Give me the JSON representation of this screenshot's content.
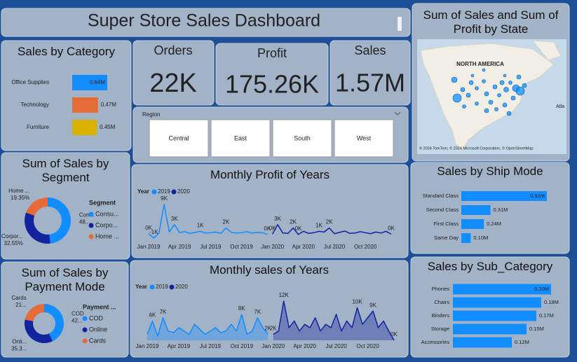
{
  "header": {
    "title": "Super Store Sales Dashboard"
  },
  "kpis": [
    {
      "label": "Orders",
      "value": "22K"
    },
    {
      "label": "Profit",
      "value": "175.26K"
    },
    {
      "label": "Sales",
      "value": "1.57M"
    }
  ],
  "slicer": {
    "title": "Region",
    "options": [
      "Central",
      "East",
      "South",
      "West"
    ]
  },
  "map": {
    "title": "Sum of Sales and Sum of Profit by State",
    "region_label": "NORTH AMERICA",
    "ocean_label": "Atla",
    "attribution": "© 2024 TomTom, © 2024 Microsoft Corporation, © OpenStreetMap"
  },
  "chart_data": [
    {
      "type": "hbar",
      "title": "Sales by Category",
      "categories": [
        "Office Supplies",
        "Technology",
        "Furniture"
      ],
      "values": [
        0.64,
        0.47,
        0.45
      ],
      "value_labels": [
        "0.64M",
        "0.47M",
        "0.45M"
      ],
      "colors": [
        "#118dff",
        "#e66c37",
        "#d9b300"
      ]
    },
    {
      "type": "donut",
      "title": "Sum of Sales by Segment",
      "legend_title": "Segment",
      "categories": [
        "Consu...",
        "Corpo...",
        "Home ..."
      ],
      "slice_labels": [
        "Con...",
        "Corpor...",
        "Home ..."
      ],
      "values": [
        48.1,
        32.55,
        19.35
      ],
      "value_labels": [
        "48...",
        "32.55%",
        "19.35%"
      ],
      "colors": [
        "#118dff",
        "#12239e",
        "#e66c37"
      ]
    },
    {
      "type": "donut",
      "title": "Sum of Sales by Payment Mode",
      "legend_title": "Payment ...",
      "categories": [
        "COD",
        "Online",
        "Cards"
      ],
      "slice_labels": [
        "COD",
        "Onli...",
        "Cards"
      ],
      "values": [
        42.9,
        35.35,
        21.75
      ],
      "value_labels": [
        "42...",
        "35.3...",
        "21..."
      ],
      "colors": [
        "#118dff",
        "#12239e",
        "#e66c37"
      ]
    },
    {
      "type": "line",
      "title": "Monthly Profit of Years",
      "legend_title": "Year",
      "categories": [
        "Jan 2019",
        null,
        null,
        null,
        null,
        null,
        "Apr 2019",
        null,
        null,
        null,
        null,
        null,
        "Jul 2019",
        null,
        null,
        null,
        null,
        null,
        "Oct 2019",
        null,
        null,
        null,
        null,
        null,
        "Jan 2020",
        null,
        null,
        null,
        null,
        null,
        "Apr 2020",
        null,
        null,
        null,
        null,
        null,
        "Jul 2020",
        null,
        null,
        null,
        null,
        null,
        "Oct 2020",
        null,
        null,
        null,
        null,
        null
      ],
      "series": [
        {
          "name": "2019",
          "color": "#118dff",
          "values": [
            0.3,
            -1.0,
            0.5,
            9,
            0.8,
            3,
            0.6,
            0.9,
            0.4,
            0.7,
            1,
            0.5,
            0.6,
            0.8,
            0.4,
            2,
            0.7,
            0.5,
            0.6,
            0.9,
            0.5,
            0.7,
            0.6,
            0.1,
            null,
            null,
            null,
            null,
            null,
            null,
            null,
            null,
            null,
            null,
            null,
            null,
            null,
            null,
            null,
            null,
            null,
            null,
            null,
            null,
            null,
            null,
            null,
            null
          ],
          "value_labels": [
            "0K",
            "-1K",
            null,
            "9K",
            null,
            "3K",
            null,
            null,
            null,
            null,
            "1K",
            null,
            null,
            null,
            null,
            "2K",
            null,
            null,
            null,
            null,
            null,
            null,
            null,
            "0K",
            null,
            null,
            null,
            null,
            null,
            null,
            null,
            null,
            null,
            null,
            null,
            null,
            null,
            null,
            null,
            null,
            null,
            null,
            null,
            null,
            null,
            null,
            null,
            null
          ]
        },
        {
          "name": "2020",
          "color": "#12239e",
          "values": [
            null,
            null,
            null,
            null,
            null,
            null,
            null,
            null,
            null,
            null,
            null,
            null,
            null,
            null,
            null,
            null,
            null,
            null,
            null,
            null,
            null,
            null,
            null,
            null,
            0.2,
            3,
            0.5,
            0.4,
            2,
            0.1,
            1,
            0.4,
            0.6,
            1,
            0.8,
            2,
            0.3,
            0.7,
            1.1,
            0.4,
            0.5,
            0.9,
            0.6,
            0.3,
            0.8,
            0.5,
            1,
            0.2
          ],
          "value_labels": [
            null,
            null,
            null,
            null,
            null,
            null,
            null,
            null,
            null,
            null,
            null,
            null,
            null,
            null,
            null,
            null,
            null,
            null,
            null,
            null,
            null,
            null,
            null,
            null,
            "0K",
            "3K",
            null,
            null,
            "2K",
            "0K",
            null,
            null,
            null,
            "1K",
            null,
            "2K",
            null,
            null,
            null,
            null,
            null,
            null,
            null,
            null,
            null,
            null,
            null,
            "0K"
          ]
        }
      ]
    },
    {
      "type": "area",
      "title": "Monthly sales of Years",
      "legend_title": "Year",
      "categories": [
        "Jan 2019",
        null,
        null,
        null,
        null,
        null,
        "Apr 2019",
        null,
        null,
        null,
        null,
        null,
        "Jul 2019",
        null,
        null,
        null,
        null,
        null,
        "Oct 2019",
        null,
        null,
        null,
        null,
        null,
        "Jan 2020",
        null,
        null,
        null,
        null,
        null,
        "Apr 2020",
        null,
        null,
        null,
        null,
        null,
        "Jul 2020",
        null,
        null,
        null,
        null,
        null,
        "Oct 2020",
        null,
        null,
        null,
        null,
        null
      ],
      "series": [
        {
          "name": "2019",
          "color": "#118dff",
          "values": [
            2,
            6,
            1.5,
            7,
            3,
            2.5,
            4,
            3,
            2,
            5,
            3.5,
            2,
            3,
            4,
            2.5,
            3,
            5,
            3,
            8,
            2,
            3,
            7,
            4,
            2,
            null,
            null,
            null,
            null,
            null,
            null,
            null,
            null,
            null,
            null,
            null,
            null,
            null,
            null,
            null,
            null,
            null,
            null,
            null,
            null,
            null,
            null,
            null,
            null
          ],
          "value_labels": [
            null,
            "6K",
            null,
            "7K",
            null,
            null,
            null,
            null,
            null,
            null,
            null,
            null,
            null,
            null,
            null,
            null,
            null,
            null,
            "8K",
            null,
            null,
            "7K",
            null,
            "2K",
            null,
            null,
            null,
            null,
            null,
            null,
            null,
            null,
            null,
            null,
            null,
            null,
            null,
            null,
            null,
            null,
            null,
            null,
            null,
            null,
            null,
            null,
            null,
            null
          ]
        },
        {
          "name": "2020",
          "color": "#12239e",
          "values": [
            null,
            null,
            null,
            null,
            null,
            null,
            null,
            null,
            null,
            null,
            null,
            null,
            null,
            null,
            null,
            null,
            null,
            null,
            null,
            null,
            null,
            null,
            null,
            null,
            2,
            3,
            12,
            4,
            6,
            3,
            5,
            4,
            7,
            3,
            5,
            4,
            8,
            3,
            6,
            4,
            10,
            5,
            7,
            9,
            4,
            6,
            3,
            0.2
          ],
          "value_labels": [
            null,
            null,
            null,
            null,
            null,
            null,
            null,
            null,
            null,
            null,
            null,
            null,
            null,
            null,
            null,
            null,
            null,
            null,
            null,
            null,
            null,
            null,
            null,
            null,
            "2K",
            null,
            "12K",
            null,
            null,
            null,
            null,
            null,
            null,
            null,
            null,
            null,
            null,
            null,
            null,
            null,
            "10K",
            null,
            null,
            "9K",
            null,
            null,
            null,
            "0K"
          ]
        }
      ]
    },
    {
      "type": "hbar",
      "title": "Sales by Ship Mode",
      "categories": [
        "Standard Class",
        "Second Class",
        "First Class",
        "Same Day"
      ],
      "values": [
        0.91,
        0.31,
        0.24,
        0.1
      ],
      "value_labels": [
        "0.91M",
        "0.31M",
        "0.24M",
        "0.10M"
      ],
      "color": "#118dff"
    },
    {
      "type": "hbar",
      "title": "Sales by Sub_Category",
      "categories": [
        "Phones",
        "Chairs",
        "Binders",
        "Storage",
        "Accessories"
      ],
      "values": [
        0.2,
        0.18,
        0.17,
        0.15,
        0.12
      ],
      "value_labels": [
        "0.20M",
        "0.18M",
        "0.17M",
        "0.15M",
        "0.12M"
      ],
      "color": "#118dff"
    }
  ]
}
